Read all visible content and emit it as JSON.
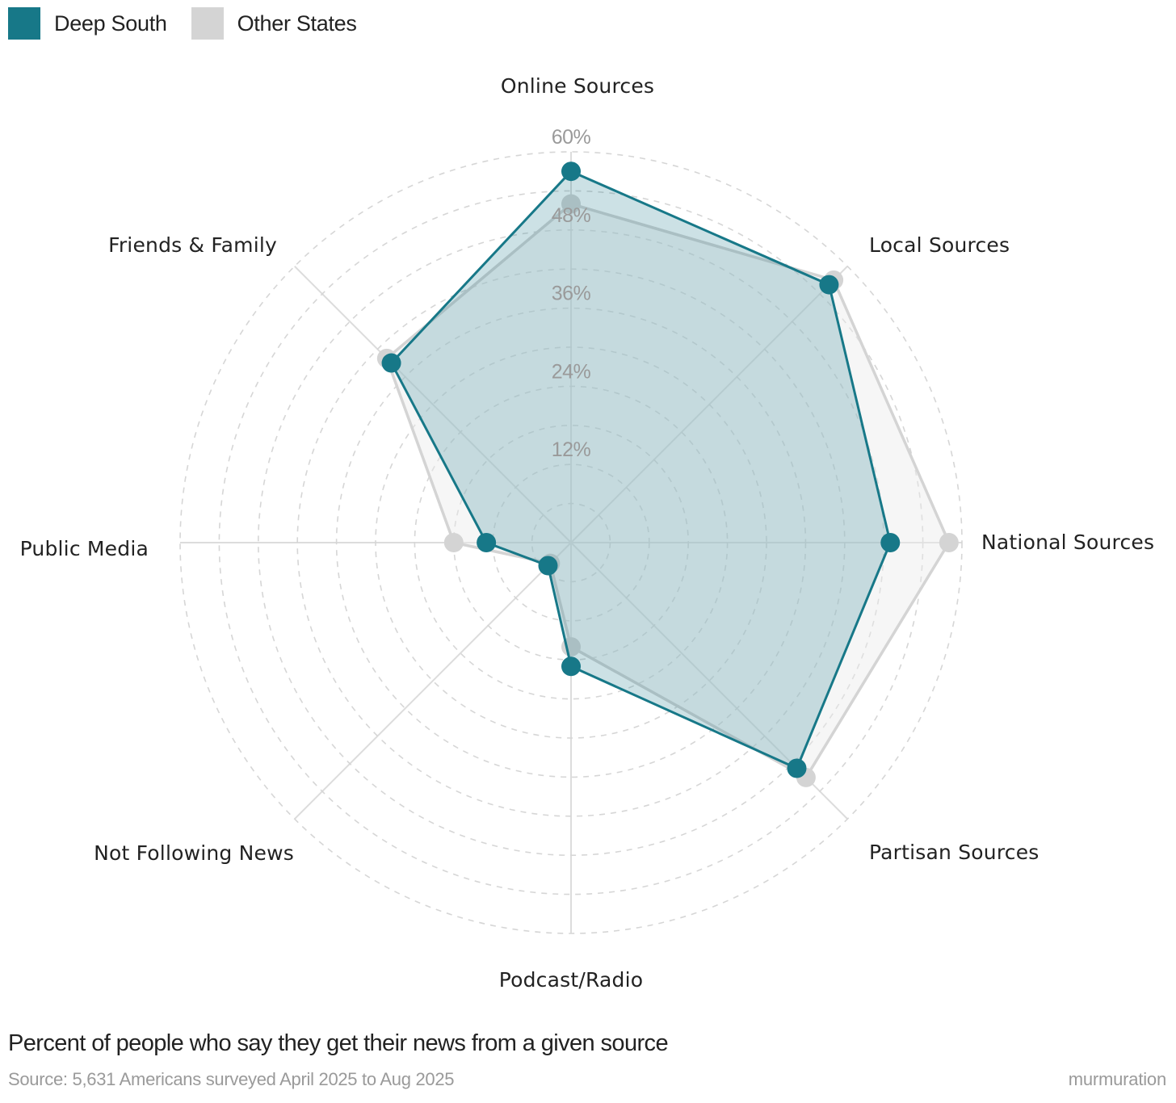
{
  "chart_data": {
    "type": "radar",
    "axes": [
      "Online Sources",
      "Local Sources",
      "National Sources",
      "Partisan Sources",
      "Podcast/Radio",
      "Not Following News",
      "Public Media",
      "Friends & Family"
    ],
    "rlim": [
      0,
      60
    ],
    "ticks": [
      12,
      24,
      36,
      48,
      60
    ],
    "tick_labels": [
      "12%",
      "24%",
      "36%",
      "48%",
      "60%"
    ],
    "series": [
      {
        "name": "Other States",
        "color": "#d4d4d4",
        "values": [
          52,
          57,
          58,
          51,
          16,
          4.5,
          18,
          40
        ]
      },
      {
        "name": "Deep South",
        "color": "#177888",
        "values": [
          57,
          56,
          49,
          49,
          19,
          5,
          13,
          39
        ]
      }
    ],
    "grid": true,
    "legend_position": "top-left"
  },
  "legend": {
    "items": [
      {
        "label": "Deep South",
        "color": "#177888"
      },
      {
        "label": "Other States",
        "color": "#d4d4d4"
      }
    ]
  },
  "caption": "Percent of people who say they get their news from a given source",
  "source": "Source: 5,631 Americans surveyed April 2025 to Aug 2025",
  "brand": "murmuration"
}
